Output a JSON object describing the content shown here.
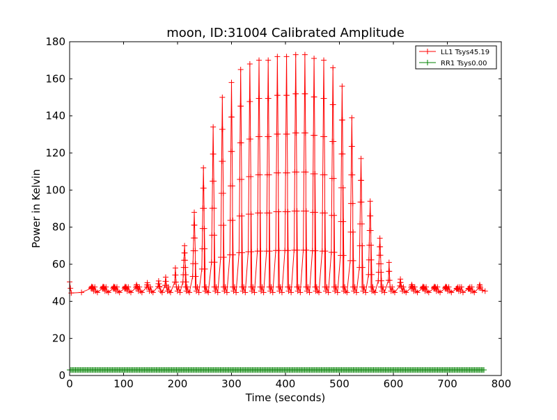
{
  "chart_data": {
    "type": "line",
    "title": "moon, ID:31004 Calibrated Amplitude",
    "xlabel": "Time (seconds)",
    "ylabel": "Power in Kelvin",
    "xlim": [
      0,
      800
    ],
    "ylim": [
      0,
      180
    ],
    "xticks": [
      0,
      100,
      200,
      300,
      400,
      500,
      600,
      700,
      800
    ],
    "yticks": [
      0,
      20,
      40,
      60,
      80,
      100,
      120,
      140,
      160,
      180
    ],
    "grid": false,
    "legend_position": "top-right",
    "data_range": [
      0,
      770
    ],
    "baseline": 46.5,
    "series": [
      {
        "name": "LL1 Tsys45.19",
        "color": "#ff0000",
        "marker": "+",
        "peaks": [
          {
            "x": 41,
            "y": 48
          },
          {
            "x": 62,
            "y": 48
          },
          {
            "x": 82,
            "y": 48
          },
          {
            "x": 103,
            "y": 48
          },
          {
            "x": 124,
            "y": 49
          },
          {
            "x": 144,
            "y": 50
          },
          {
            "x": 165,
            "y": 51
          },
          {
            "x": 178,
            "y": 53
          },
          {
            "x": 196,
            "y": 58
          },
          {
            "x": 213,
            "y": 70
          },
          {
            "x": 231,
            "y": 88
          },
          {
            "x": 248,
            "y": 112
          },
          {
            "x": 266,
            "y": 134
          },
          {
            "x": 283,
            "y": 150
          },
          {
            "x": 300,
            "y": 158
          },
          {
            "x": 317,
            "y": 165
          },
          {
            "x": 334,
            "y": 168
          },
          {
            "x": 351,
            "y": 170
          },
          {
            "x": 368,
            "y": 170
          },
          {
            "x": 385,
            "y": 172
          },
          {
            "x": 402,
            "y": 172
          },
          {
            "x": 419,
            "y": 173
          },
          {
            "x": 436,
            "y": 173
          },
          {
            "x": 453,
            "y": 171
          },
          {
            "x": 471,
            "y": 170
          },
          {
            "x": 488,
            "y": 166
          },
          {
            "x": 505,
            "y": 156
          },
          {
            "x": 523,
            "y": 139
          },
          {
            "x": 540,
            "y": 117
          },
          {
            "x": 557,
            "y": 94
          },
          {
            "x": 575,
            "y": 74
          },
          {
            "x": 592,
            "y": 61
          },
          {
            "x": 613,
            "y": 52
          },
          {
            "x": 634,
            "y": 49
          },
          {
            "x": 655,
            "y": 48
          },
          {
            "x": 676,
            "y": 48
          },
          {
            "x": 697,
            "y": 48
          },
          {
            "x": 718,
            "y": 47
          },
          {
            "x": 740,
            "y": 47
          },
          {
            "x": 760,
            "y": 49
          }
        ]
      },
      {
        "name": "RR1 Tsys0.00",
        "color": "#008000",
        "marker": "+",
        "level": 3
      }
    ]
  }
}
